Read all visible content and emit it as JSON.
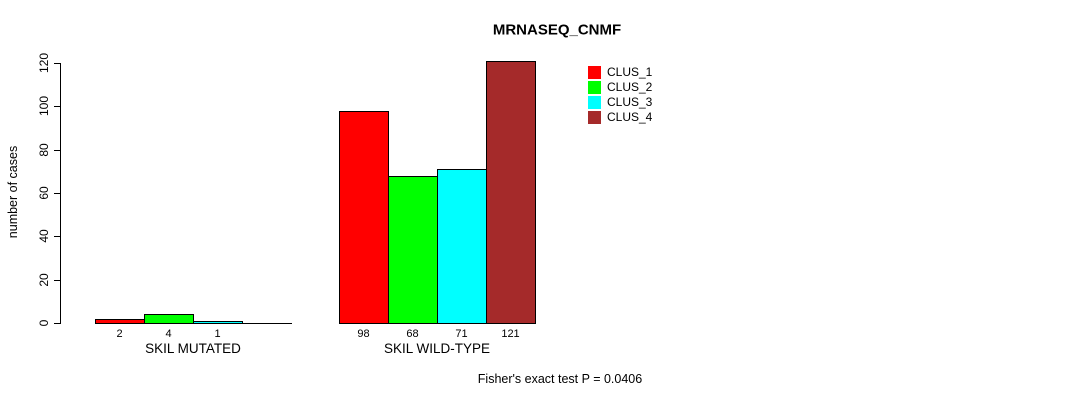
{
  "chart_data": {
    "type": "bar",
    "title": "MRNASEQ_CNMF",
    "ylabel": "number of cases",
    "xlabel": "",
    "ylim": [
      0,
      120
    ],
    "yticks": [
      0,
      20,
      40,
      60,
      80,
      100,
      120
    ],
    "grid": false,
    "legend_position": "top-right-inside",
    "series": [
      {
        "name": "CLUS_1",
        "color": "#FF0000"
      },
      {
        "name": "CLUS_2",
        "color": "#00FF00"
      },
      {
        "name": "CLUS_3",
        "color": "#00FFFF"
      },
      {
        "name": "CLUS_4",
        "color": "#A52A2A"
      }
    ],
    "categories": [
      "SKIL MUTATED",
      "SKIL WILD-TYPE"
    ],
    "groups": [
      {
        "label": "SKIL MUTATED",
        "values": [
          2,
          4,
          1,
          0
        ],
        "bar_labels": [
          "2",
          "4",
          "1",
          ""
        ]
      },
      {
        "label": "SKIL WILD-TYPE",
        "values": [
          98,
          68,
          71,
          121
        ],
        "bar_labels": [
          "98",
          "68",
          "71",
          "121"
        ]
      }
    ],
    "footnote": "Fisher's exact test P = 0.0406"
  }
}
